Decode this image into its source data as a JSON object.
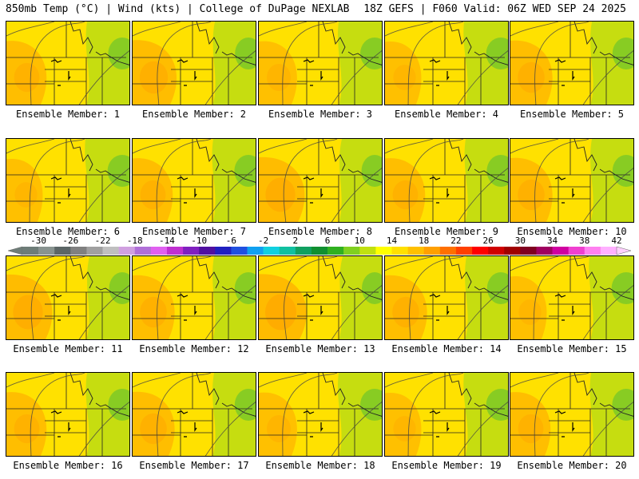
{
  "header": {
    "left": "850mb Temp (°C) | Wind (kts) | College of DuPage NEXLAB",
    "right": "18Z GEFS | F060 Valid: 06Z WED SEP 24 2025"
  },
  "panels": [
    {
      "label": "Ensemble Member: 1",
      "warm": 0.55
    },
    {
      "label": "Ensemble Member: 2",
      "warm": 0.65
    },
    {
      "label": "Ensemble Member: 3",
      "warm": 0.5
    },
    {
      "label": "Ensemble Member: 4",
      "warm": 0.45
    },
    {
      "label": "Ensemble Member: 5",
      "warm": 0.6
    },
    {
      "label": "Ensemble Member: 6",
      "warm": 0.45
    },
    {
      "label": "Ensemble Member: 7",
      "warm": 0.55
    },
    {
      "label": "Ensemble Member: 8",
      "warm": 0.7
    },
    {
      "label": "Ensemble Member: 9",
      "warm": 0.55
    },
    {
      "label": "Ensemble Member: 10",
      "warm": 0.6
    },
    {
      "label": "Ensemble Member: 11",
      "warm": 0.7
    },
    {
      "label": "Ensemble Member: 12",
      "warm": 0.6
    },
    {
      "label": "Ensemble Member: 13",
      "warm": 0.75
    },
    {
      "label": "Ensemble Member: 14",
      "warm": 0.6
    },
    {
      "label": "Ensemble Member: 15",
      "warm": 0.45
    },
    {
      "label": "Ensemble Member: 16",
      "warm": 0.55
    },
    {
      "label": "Ensemble Member: 17",
      "warm": 0.6
    },
    {
      "label": "Ensemble Member: 18",
      "warm": 0.5
    },
    {
      "label": "Ensemble Member: 19",
      "warm": 0.45
    },
    {
      "label": "Ensemble Member: 20",
      "warm": 0.55
    }
  ],
  "colorbar": {
    "labels": [
      "-30",
      "-26",
      "-22",
      "-18",
      "-14",
      "-10",
      "-6",
      "-2",
      "2",
      "6",
      "10",
      "14",
      "18",
      "22",
      "26",
      "30",
      "34",
      "38",
      "42"
    ],
    "colors": [
      "#6e7d78",
      "#889390",
      "#5c6666",
      "#808080",
      "#a0a0a0",
      "#bfbfbf",
      "#d0a0e0",
      "#b070d8",
      "#e060f0",
      "#c030d0",
      "#8020c0",
      "#5010a0",
      "#2020c0",
      "#2050e0",
      "#10a0f0",
      "#10d0e0",
      "#10c0a0",
      "#10a060",
      "#109030",
      "#30b020",
      "#80d020",
      "#c0e010",
      "#ffff00",
      "#ffe000",
      "#ffc000",
      "#ffa000",
      "#ff7000",
      "#ff4000",
      "#ff0000",
      "#d00000",
      "#a00000",
      "#800020",
      "#a00060",
      "#d000a0",
      "#f040d0",
      "#ff80f0",
      "#ffb0ff"
    ]
  }
}
